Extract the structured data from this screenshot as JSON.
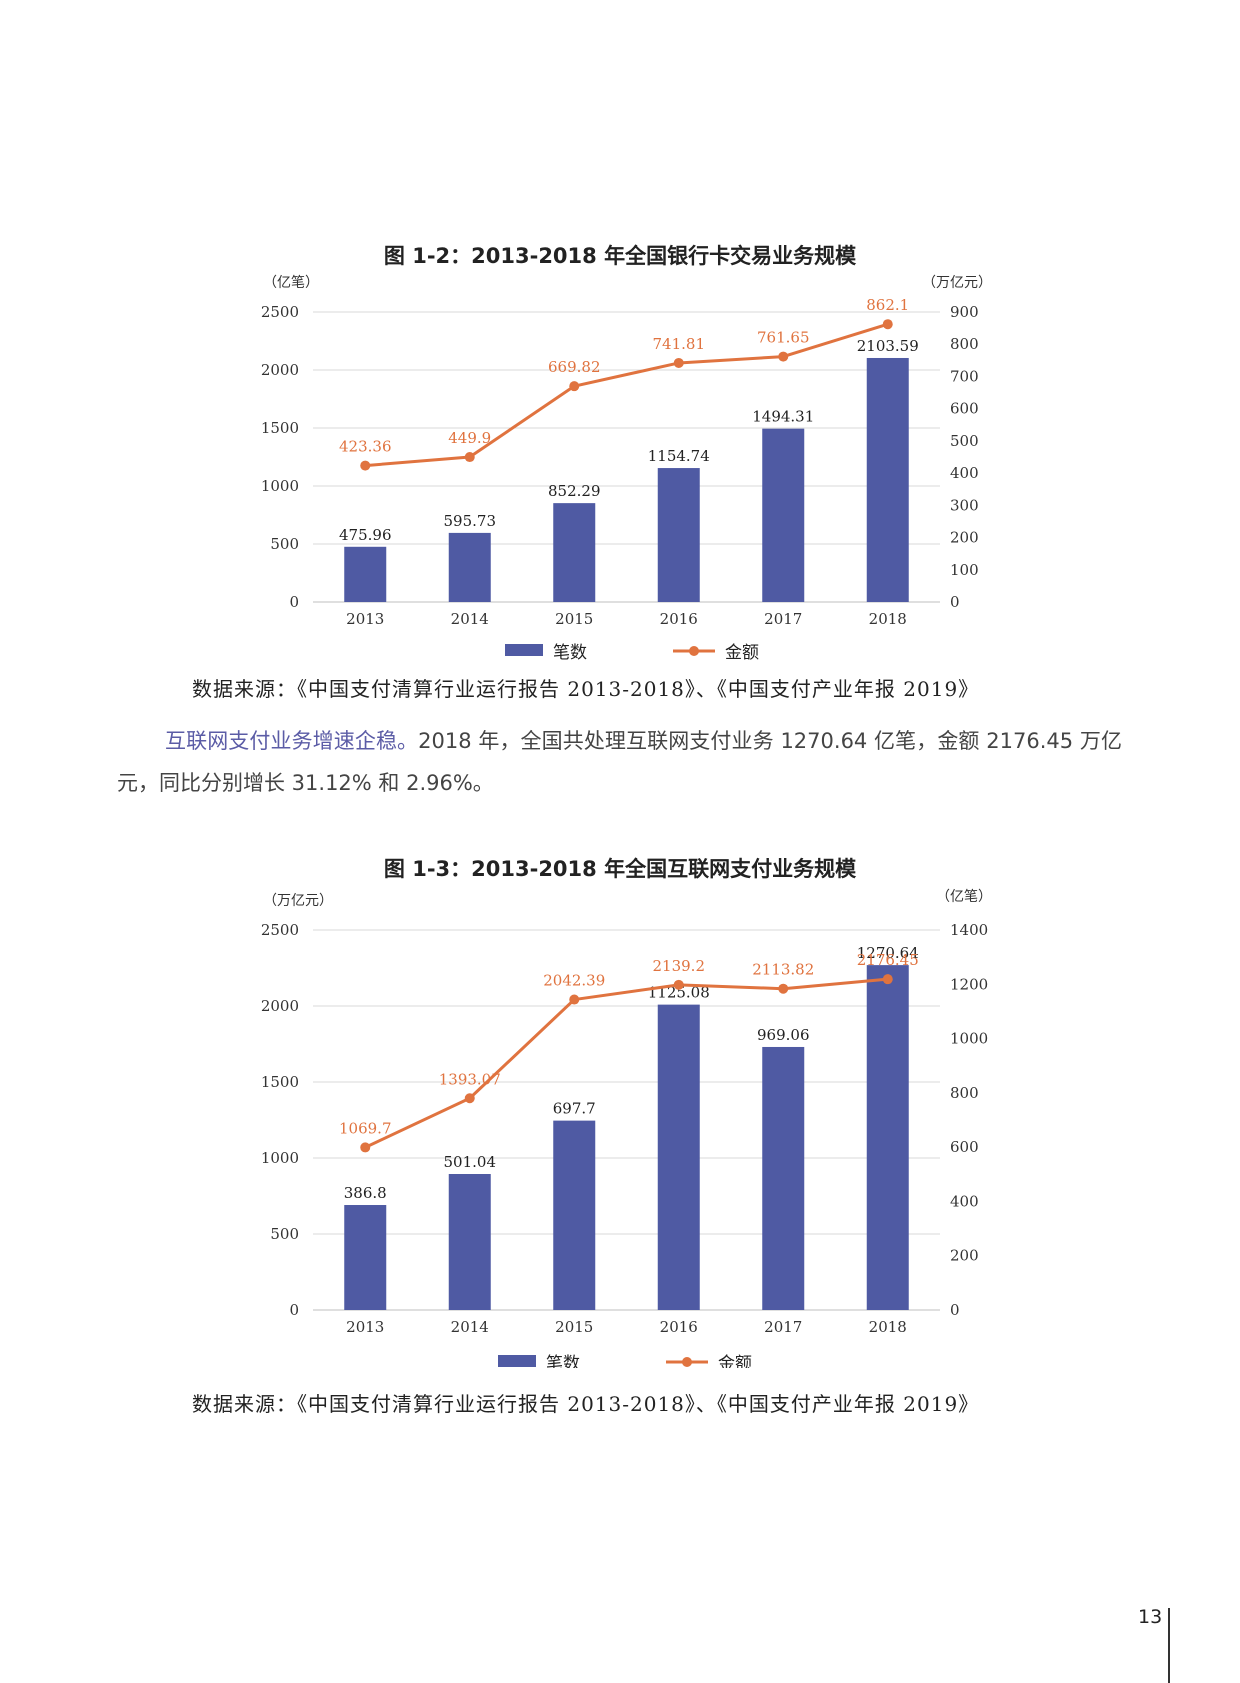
{
  "page": {
    "number": "13"
  },
  "paragraph": {
    "highlight": "互联网支付业务增速企稳。",
    "text": "2018 年，全国共处理互联网支付业务 1270.64 亿笔，金额 2176.45 万亿元，同比分别增长 31.12% 和 2.96%。"
  },
  "chart_data": [
    {
      "type": "bar+line",
      "title": "图 1-2：2013-2018 年全国银行卡交易业务规模",
      "categories": [
        "2013",
        "2014",
        "2015",
        "2016",
        "2017",
        "2018"
      ],
      "y_left": {
        "unit": "（亿笔）",
        "min": 0,
        "max": 2500,
        "ticks": [
          "0",
          "500",
          "1000",
          "1500",
          "2000",
          "2500"
        ]
      },
      "y_right": {
        "unit": "（万亿元）",
        "min": 0,
        "max": 900,
        "ticks": [
          "0",
          "100",
          "200",
          "300",
          "400",
          "500",
          "600",
          "700",
          "800",
          "900"
        ]
      },
      "series": [
        {
          "name": "笔数",
          "type": "bar",
          "axis": "left",
          "color": "#4f5aa3",
          "values": [
            475.96,
            595.73,
            852.29,
            1154.74,
            1494.31,
            2103.59
          ],
          "labels": [
            "475.96",
            "595.73",
            "852.29",
            "1154.74",
            "1494.31",
            "2103.59"
          ]
        },
        {
          "name": "金额",
          "type": "line",
          "axis": "right",
          "color": "#e0733f",
          "values": [
            423.36,
            449.9,
            669.82,
            741.81,
            761.65,
            862.1
          ],
          "labels": [
            "423.36",
            "449.9",
            "669.82",
            "741.81",
            "761.65",
            "862.1"
          ]
        }
      ],
      "grid": true,
      "legend": "bottom",
      "source": "数据来源：《中国支付清算行业运行报告 2013-2018》、《中国支付产业年报 2019》"
    },
    {
      "type": "bar+line",
      "title": "图 1-3：2013-2018 年全国互联网支付业务规模",
      "categories": [
        "2013",
        "2014",
        "2015",
        "2016",
        "2017",
        "2018"
      ],
      "y_left": {
        "unit": "（万亿元）",
        "min": 0,
        "max": 2500,
        "ticks": [
          "0",
          "500",
          "1000",
          "1500",
          "2000",
          "2500"
        ]
      },
      "y_right": {
        "unit": "（亿笔）",
        "min": 0,
        "max": 1400,
        "ticks": [
          "0",
          "200",
          "400",
          "600",
          "800",
          "1000",
          "1200",
          "1400"
        ]
      },
      "series": [
        {
          "name": "笔数",
          "type": "bar",
          "axis": "right",
          "color": "#4f5aa3",
          "values": [
            386.8,
            501.04,
            697.7,
            1125.08,
            969.06,
            1270.64
          ],
          "labels": [
            "386.8",
            "501.04",
            "697.7",
            "1125.08",
            "969.06",
            "1270.64"
          ]
        },
        {
          "name": "金额",
          "type": "line",
          "axis": "left",
          "color": "#e0733f",
          "values": [
            1069.7,
            1393.07,
            2042.39,
            2139.2,
            2113.82,
            2176.45
          ],
          "labels": [
            "1069.7",
            "1393.07",
            "2042.39",
            "2139.2",
            "2113.82",
            "2176.45"
          ]
        }
      ],
      "grid": true,
      "legend": "bottom",
      "source": "数据来源：《中国支付清算行业运行报告 2013-2018》、《中国支付产业年报 2019》"
    }
  ]
}
